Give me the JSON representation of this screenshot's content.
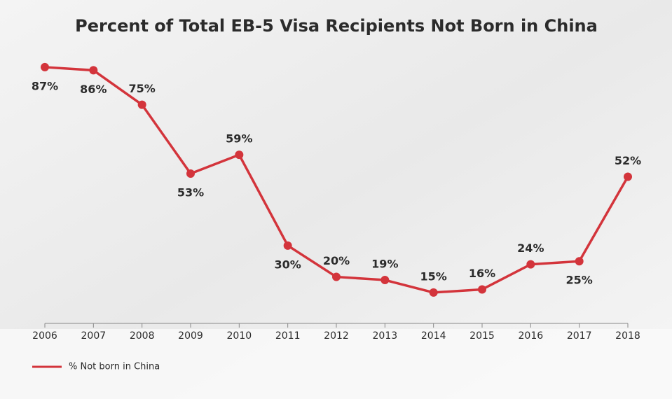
{
  "chart_data": {
    "type": "line",
    "title": "Percent of Total EB-5 Visa Recipients Not Born in China",
    "categories": [
      "2006",
      "2007",
      "2008",
      "2009",
      "2010",
      "2011",
      "2012",
      "2013",
      "2014",
      "2015",
      "2016",
      "2017",
      "2018"
    ],
    "series": [
      {
        "name": "% Not born in China",
        "color": "#d3343b",
        "values": [
          87,
          86,
          75,
          53,
          59,
          30,
          20,
          19,
          15,
          16,
          24,
          25,
          52
        ],
        "value_labels": [
          "87%",
          "86%",
          "75%",
          "53%",
          "59%",
          "30%",
          "20%",
          "19%",
          "15%",
          "16%",
          "24%",
          "25%",
          "52%"
        ]
      }
    ],
    "legend": "bottom-left"
  }
}
